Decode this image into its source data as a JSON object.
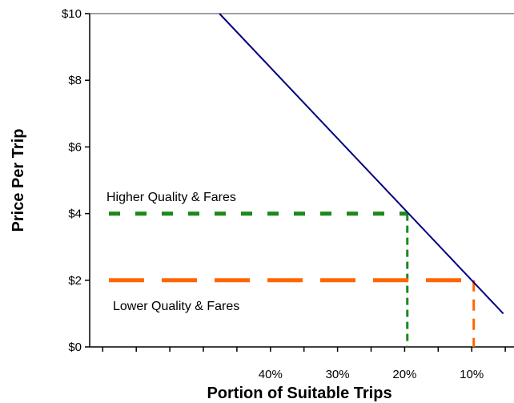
{
  "chart_data": {
    "type": "line",
    "xlabel": "Portion of Suitable Trips",
    "ylabel": "Price Per Trip",
    "x_axis": {
      "reversed": true,
      "ticks": [
        {
          "value": 40,
          "label": "40%"
        },
        {
          "value": 30,
          "label": "30%"
        },
        {
          "value": 20,
          "label": "20%"
        },
        {
          "value": 10,
          "label": "10%"
        }
      ]
    },
    "y_axis": {
      "ylim": [
        0,
        10
      ],
      "ticks": [
        {
          "value": 0,
          "label": "$0"
        },
        {
          "value": 2,
          "label": "$2"
        },
        {
          "value": 4,
          "label": "$4"
        },
        {
          "value": 6,
          "label": "$6"
        },
        {
          "value": 8,
          "label": "$8"
        },
        {
          "value": 10,
          "label": "$10"
        }
      ]
    },
    "series": [
      {
        "role": "demand-line",
        "color": "#000080",
        "points": [
          {
            "x": 47.6,
            "y": 10
          },
          {
            "x": 5.3,
            "y": 1
          }
        ]
      }
    ],
    "annotations": [
      {
        "label": "Higher Quality & Fares",
        "price": 4,
        "portion": 19.6,
        "color": "#1a8a1a",
        "dash": "short"
      },
      {
        "label": "Lower Quality & Fares",
        "price": 2,
        "portion": 9.7,
        "color": "#ff6600",
        "dash": "long"
      }
    ],
    "grid": false,
    "legend": "none"
  }
}
